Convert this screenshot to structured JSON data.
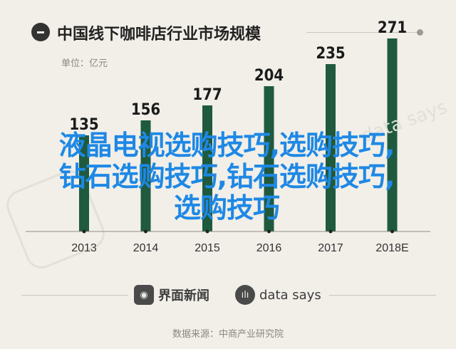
{
  "header": {
    "title": "中国线下咖啡店行业市场规模",
    "unit": "单位：亿元"
  },
  "chart_data": {
    "type": "bar",
    "title": "中国线下咖啡店行业市场规模",
    "ylabel": "单位：亿元",
    "categories": [
      "2013",
      "2014",
      "2015",
      "2016",
      "2017",
      "2018E"
    ],
    "values": [
      135,
      156,
      177,
      204,
      235,
      271
    ],
    "ylim": [
      0,
      300
    ],
    "bar_color": "#1f5a3f",
    "grid": false,
    "legend": "none"
  },
  "overlay": {
    "lines": [
      "液晶电视选购技巧,选购技巧,",
      "钻石选购技巧,钻石选购技巧,",
      "选购技巧"
    ]
  },
  "footer": {
    "brand_left": "界面新闻",
    "brand_right": "data says",
    "source": "数据来源：中商产业研究院"
  },
  "colors": {
    "background": "#f1efe8",
    "bar": "#1f5a3f",
    "overlay_text": "#1e88e5"
  }
}
